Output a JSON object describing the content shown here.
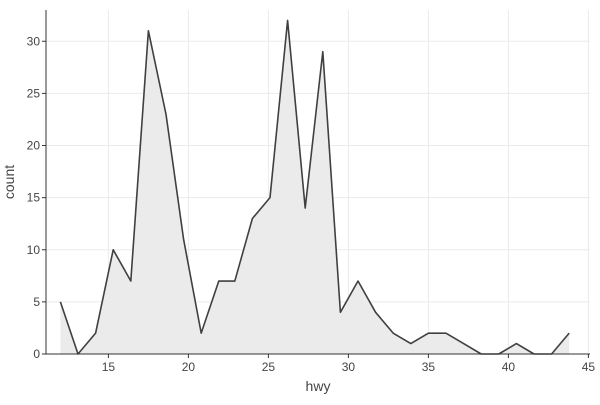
{
  "chart_data": {
    "type": "area",
    "title": "",
    "xlabel": "hwy",
    "ylabel": "count",
    "xlim": [
      11.1,
      45.1
    ],
    "ylim": [
      0,
      33
    ],
    "x_ticks": [
      15,
      20,
      25,
      30,
      35,
      40,
      45
    ],
    "y_ticks": [
      0,
      5,
      10,
      15,
      20,
      25,
      30
    ],
    "grid": true,
    "legend": "none",
    "series": [
      {
        "x": [
          12,
          13.1,
          14.2,
          15.3,
          16.4,
          17.5,
          18.6,
          19.7,
          20.8,
          21.9,
          22.9,
          24.0,
          25.1,
          26.2,
          27.3,
          28.4,
          29.5,
          30.6,
          31.7,
          32.8,
          33.9,
          35.0,
          36.1,
          37.2,
          38.3,
          39.4,
          40.5,
          41.6,
          42.7,
          43.8
        ],
        "values": [
          5,
          0,
          2,
          10,
          7,
          31,
          23,
          11,
          2,
          7,
          7,
          13,
          15,
          32,
          14,
          29,
          4,
          7,
          4,
          2,
          1,
          2,
          2,
          1,
          0,
          0,
          1,
          0,
          0,
          2
        ],
        "line_color": "#404040",
        "fill_color": "#ebebeb"
      }
    ]
  },
  "colors": {
    "grid": "#ebebeb",
    "axis_line": "#333333",
    "text": "#444444"
  }
}
